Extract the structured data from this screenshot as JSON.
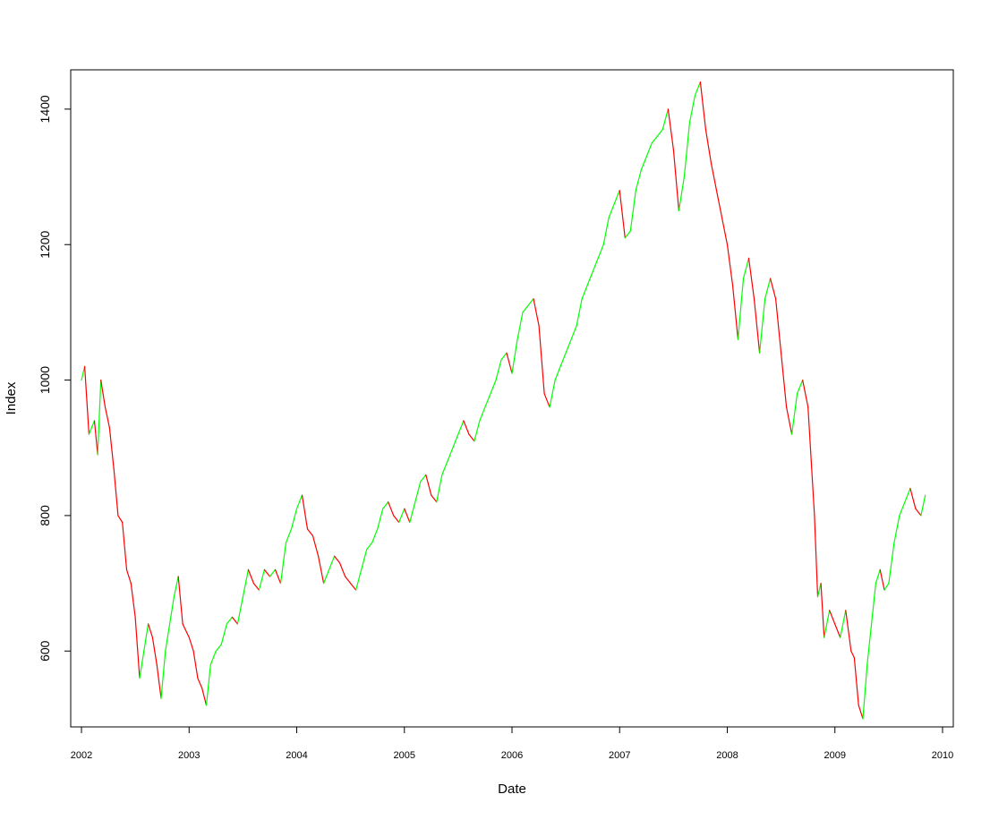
{
  "chart_data": {
    "type": "line",
    "xlabel": "Date",
    "ylabel": "Index",
    "xlim": [
      2001.9,
      2010.1
    ],
    "ylim": [
      488,
      1458
    ],
    "x_ticks": [
      2002,
      2003,
      2004,
      2005,
      2006,
      2007,
      2008,
      2009,
      2010
    ],
    "x_tick_labels": [
      "2002",
      "2003",
      "2004",
      "2005",
      "2006",
      "2007",
      "2008",
      "2009",
      "2010"
    ],
    "y_ticks": [
      600,
      800,
      1000,
      1200,
      1400
    ],
    "y_tick_labels": [
      "600",
      "800",
      "1000",
      "1200",
      "1400"
    ],
    "grid": false,
    "series_colors": {
      "up": "#00ff00",
      "down": "#ff0000",
      "neutral": "#bebebe"
    },
    "x": [
      2002.0,
      2002.03,
      2002.07,
      2002.12,
      2002.15,
      2002.18,
      2002.22,
      2002.26,
      2002.3,
      2002.34,
      2002.38,
      2002.42,
      2002.46,
      2002.5,
      2002.54,
      2002.58,
      2002.62,
      2002.66,
      2002.7,
      2002.74,
      2002.78,
      2002.82,
      2002.86,
      2002.9,
      2002.94,
      2003.0,
      2003.04,
      2003.08,
      2003.12,
      2003.16,
      2003.2,
      2003.25,
      2003.3,
      2003.35,
      2003.4,
      2003.45,
      2003.5,
      2003.55,
      2003.6,
      2003.65,
      2003.7,
      2003.75,
      2003.8,
      2003.85,
      2003.9,
      2003.95,
      2004.0,
      2004.05,
      2004.1,
      2004.15,
      2004.2,
      2004.25,
      2004.3,
      2004.35,
      2004.4,
      2004.45,
      2004.5,
      2004.55,
      2004.6,
      2004.65,
      2004.7,
      2004.75,
      2004.8,
      2004.85,
      2004.9,
      2004.95,
      2005.0,
      2005.05,
      2005.1,
      2005.15,
      2005.2,
      2005.25,
      2005.3,
      2005.35,
      2005.4,
      2005.45,
      2005.5,
      2005.55,
      2005.6,
      2005.65,
      2005.7,
      2005.75,
      2005.8,
      2005.85,
      2005.9,
      2005.95,
      2006.0,
      2006.05,
      2006.1,
      2006.15,
      2006.2,
      2006.25,
      2006.3,
      2006.35,
      2006.4,
      2006.45,
      2006.5,
      2006.55,
      2006.6,
      2006.65,
      2006.7,
      2006.75,
      2006.8,
      2006.85,
      2006.9,
      2006.95,
      2007.0,
      2007.05,
      2007.1,
      2007.15,
      2007.2,
      2007.25,
      2007.3,
      2007.35,
      2007.4,
      2007.45,
      2007.5,
      2007.55,
      2007.6,
      2007.65,
      2007.7,
      2007.75,
      2007.8,
      2007.85,
      2007.9,
      2007.95,
      2008.0,
      2008.05,
      2008.1,
      2008.15,
      2008.2,
      2008.25,
      2008.3,
      2008.35,
      2008.4,
      2008.45,
      2008.5,
      2008.55,
      2008.6,
      2008.65,
      2008.7,
      2008.75,
      2008.78,
      2008.81,
      2008.84,
      2008.87,
      2008.9,
      2008.95,
      2009.0,
      2009.05,
      2009.1,
      2009.15,
      2009.18,
      2009.22,
      2009.26,
      2009.3,
      2009.34,
      2009.38,
      2009.42,
      2009.46,
      2009.5,
      2009.55,
      2009.6,
      2009.65,
      2009.7,
      2009.75,
      2009.8,
      2009.84
    ],
    "values": [
      1000,
      1020,
      920,
      940,
      890,
      1000,
      960,
      930,
      870,
      800,
      790,
      720,
      700,
      650,
      560,
      600,
      640,
      620,
      580,
      530,
      600,
      640,
      680,
      710,
      640,
      620,
      600,
      560,
      545,
      520,
      580,
      600,
      610,
      640,
      650,
      640,
      680,
      720,
      700,
      690,
      720,
      710,
      720,
      700,
      760,
      780,
      810,
      830,
      780,
      770,
      740,
      700,
      720,
      740,
      730,
      710,
      700,
      690,
      720,
      750,
      760,
      780,
      810,
      820,
      800,
      790,
      810,
      790,
      820,
      850,
      860,
      830,
      820,
      860,
      880,
      900,
      920,
      940,
      920,
      910,
      940,
      960,
      980,
      1000,
      1030,
      1040,
      1010,
      1060,
      1100,
      1110,
      1120,
      1080,
      980,
      960,
      1000,
      1020,
      1040,
      1060,
      1080,
      1120,
      1140,
      1160,
      1180,
      1200,
      1240,
      1260,
      1280,
      1210,
      1220,
      1280,
      1310,
      1330,
      1350,
      1360,
      1370,
      1400,
      1340,
      1250,
      1300,
      1380,
      1420,
      1440,
      1370,
      1320,
      1280,
      1240,
      1200,
      1140,
      1060,
      1150,
      1180,
      1120,
      1040,
      1120,
      1150,
      1120,
      1040,
      960,
      920,
      980,
      1000,
      960,
      880,
      800,
      680,
      700,
      620,
      660,
      640,
      620,
      660,
      600,
      590,
      520,
      500,
      580,
      640,
      700,
      720,
      690,
      700,
      760,
      800,
      820,
      840,
      810,
      800,
      830
    ]
  }
}
